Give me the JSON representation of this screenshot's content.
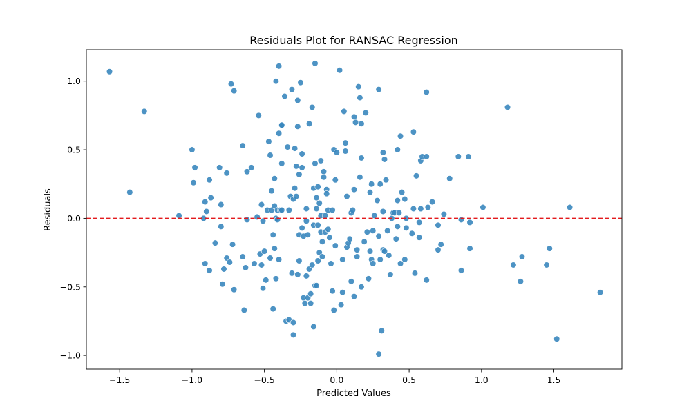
{
  "chart_data": {
    "type": "scatter",
    "title": "Residuals Plot for RANSAC Regression",
    "xlabel": "Predicted Values",
    "ylabel": "Residuals",
    "xlim": [
      -1.73,
      1.97
    ],
    "ylim": [
      -1.1,
      1.23
    ],
    "xticks": [
      -1.5,
      -1.0,
      -0.5,
      0.0,
      0.5,
      1.0,
      1.5
    ],
    "xtick_labels": [
      "−1.5",
      "−1.0",
      "−0.5",
      "0.0",
      "0.5",
      "1.0",
      "1.5"
    ],
    "yticks": [
      -1.0,
      -0.5,
      0.0,
      0.5,
      1.0
    ],
    "ytick_labels": [
      "−1.0",
      "−0.5",
      "0.0",
      "0.5",
      "1.0"
    ],
    "grid": false,
    "point_color": "#3a87be",
    "reference_line": {
      "y": 0,
      "color": "#e31a1c",
      "style": "dashed"
    },
    "points": [
      [
        -1.57,
        1.07
      ],
      [
        -1.43,
        0.19
      ],
      [
        -1.33,
        0.78
      ],
      [
        -1.09,
        0.02
      ],
      [
        -1.0,
        0.5
      ],
      [
        -0.99,
        0.26
      ],
      [
        -0.98,
        0.37
      ],
      [
        -0.92,
        0.0
      ],
      [
        -0.91,
        0.12
      ],
      [
        -0.91,
        -0.33
      ],
      [
        -0.9,
        0.05
      ],
      [
        -0.88,
        0.28
      ],
      [
        -0.88,
        -0.38
      ],
      [
        -0.87,
        0.15
      ],
      [
        -0.84,
        -0.18
      ],
      [
        -0.81,
        0.37
      ],
      [
        -0.8,
        -0.06
      ],
      [
        -0.8,
        0.1
      ],
      [
        -0.79,
        -0.48
      ],
      [
        -0.78,
        -0.37
      ],
      [
        -0.76,
        -0.29
      ],
      [
        -0.76,
        0.33
      ],
      [
        -0.74,
        -0.32
      ],
      [
        -0.73,
        0.98
      ],
      [
        -0.71,
        0.93
      ],
      [
        -0.72,
        -0.19
      ],
      [
        -0.71,
        -0.52
      ],
      [
        -0.65,
        0.53
      ],
      [
        -0.65,
        -0.28
      ],
      [
        -0.64,
        -0.67
      ],
      [
        -0.63,
        -0.36
      ],
      [
        -0.62,
        0.34
      ],
      [
        -0.62,
        -0.01
      ],
      [
        -0.59,
        0.37
      ],
      [
        -0.57,
        -0.33
      ],
      [
        -0.55,
        0.01
      ],
      [
        -0.54,
        0.75
      ],
      [
        -0.53,
        -0.26
      ],
      [
        -0.52,
        0.1
      ],
      [
        -0.52,
        -0.34
      ],
      [
        -0.51,
        -0.02
      ],
      [
        -0.51,
        -0.51
      ],
      [
        -0.5,
        -0.24
      ],
      [
        -0.49,
        -0.45
      ],
      [
        -0.48,
        0.06
      ],
      [
        -0.47,
        0.56
      ],
      [
        -0.46,
        0.46
      ],
      [
        -0.46,
        -0.29
      ],
      [
        -0.45,
        0.2
      ],
      [
        -0.45,
        0.06
      ],
      [
        -0.44,
        -0.66
      ],
      [
        -0.44,
        -0.12
      ],
      [
        -0.43,
        0.09
      ],
      [
        -0.43,
        0.29
      ],
      [
        -0.43,
        -0.22
      ],
      [
        -0.42,
        0.0
      ],
      [
        -0.42,
        -0.44
      ],
      [
        -0.42,
        1.0
      ],
      [
        -0.41,
        -0.01
      ],
      [
        -0.41,
        0.06
      ],
      [
        -0.4,
        1.11
      ],
      [
        -0.4,
        0.62
      ],
      [
        -0.4,
        -0.3
      ],
      [
        -0.39,
        0.06
      ],
      [
        -0.38,
        0.68
      ],
      [
        -0.38,
        0.68
      ],
      [
        -0.38,
        0.4
      ],
      [
        -0.38,
        0.06
      ],
      [
        -0.36,
        0.89
      ],
      [
        -0.35,
        -0.75
      ],
      [
        -0.34,
        0.52
      ],
      [
        -0.33,
        -0.74
      ],
      [
        -0.33,
        0.06
      ],
      [
        -0.32,
        0.16
      ],
      [
        -0.31,
        0.94
      ],
      [
        -0.31,
        -0.4
      ],
      [
        -0.3,
        0.14
      ],
      [
        -0.3,
        -0.85
      ],
      [
        -0.3,
        -0.76
      ],
      [
        -0.29,
        0.22
      ],
      [
        -0.29,
        0.51
      ],
      [
        -0.28,
        0.38
      ],
      [
        -0.28,
        0.16
      ],
      [
        -0.27,
        -0.41
      ],
      [
        -0.27,
        0.86
      ],
      [
        -0.27,
        0.67
      ],
      [
        -0.26,
        0.32
      ],
      [
        -0.26,
        -0.12
      ],
      [
        -0.26,
        -0.31
      ],
      [
        -0.25,
        0.99
      ],
      [
        -0.24,
        0.47
      ],
      [
        -0.24,
        0.37
      ],
      [
        -0.24,
        -0.07
      ],
      [
        -0.23,
        -0.13
      ],
      [
        -0.23,
        -0.58
      ],
      [
        -0.22,
        -0.62
      ],
      [
        -0.21,
        0.07
      ],
      [
        -0.21,
        -0.02
      ],
      [
        -0.21,
        -0.42
      ],
      [
        -0.2,
        -0.58
      ],
      [
        -0.2,
        -0.12
      ],
      [
        -0.19,
        0.69
      ],
      [
        -0.19,
        -0.37
      ],
      [
        -0.18,
        -0.62
      ],
      [
        -0.18,
        -0.55
      ],
      [
        -0.17,
        0.81
      ],
      [
        -0.17,
        -0.34
      ],
      [
        -0.16,
        0.22
      ],
      [
        -0.16,
        -0.05
      ],
      [
        -0.16,
        -0.79
      ],
      [
        -0.15,
        1.13
      ],
      [
        -0.15,
        -0.49
      ],
      [
        -0.15,
        0.4
      ],
      [
        -0.14,
        0.07
      ],
      [
        -0.14,
        -0.49
      ],
      [
        -0.14,
        0.15
      ],
      [
        -0.13,
        -0.05
      ],
      [
        -0.13,
        0.23
      ],
      [
        -0.13,
        -0.31
      ],
      [
        -0.12,
        0.11
      ],
      [
        -0.12,
        -0.25
      ],
      [
        -0.11,
        0.42
      ],
      [
        -0.11,
        -0.1
      ],
      [
        -0.11,
        0.02
      ],
      [
        -0.1,
        -0.17
      ],
      [
        -0.1,
        -0.28
      ],
      [
        -0.09,
        0.34
      ],
      [
        -0.09,
        0.3
      ],
      [
        -0.08,
        0.02
      ],
      [
        -0.08,
        -0.1
      ],
      [
        -0.07,
        0.21
      ],
      [
        -0.07,
        0.18
      ],
      [
        -0.06,
        -0.08
      ],
      [
        -0.06,
        0.06
      ],
      [
        -0.05,
        -0.14
      ],
      [
        -0.04,
        -0.33
      ],
      [
        -0.03,
        0.06
      ],
      [
        -0.03,
        -0.53
      ],
      [
        -0.02,
        0.5
      ],
      [
        -0.02,
        -0.67
      ],
      [
        -0.01,
        0.28
      ],
      [
        -0.01,
        -0.2
      ],
      [
        0.0,
        0.48
      ],
      [
        0.02,
        1.08
      ],
      [
        0.03,
        -0.63
      ],
      [
        0.04,
        -0.54
      ],
      [
        0.04,
        -0.3
      ],
      [
        0.05,
        0.78
      ],
      [
        0.06,
        0.55
      ],
      [
        0.06,
        0.49
      ],
      [
        0.07,
        -0.21
      ],
      [
        0.07,
        0.16
      ],
      [
        0.08,
        -0.18
      ],
      [
        0.09,
        -0.15
      ],
      [
        0.1,
        0.04
      ],
      [
        0.1,
        -0.46
      ],
      [
        0.11,
        0.06
      ],
      [
        0.12,
        0.74
      ],
      [
        0.12,
        -0.57
      ],
      [
        0.12,
        0.21
      ],
      [
        0.13,
        0.7
      ],
      [
        0.14,
        -0.23
      ],
      [
        0.14,
        -0.28
      ],
      [
        0.15,
        0.96
      ],
      [
        0.16,
        0.88
      ],
      [
        0.16,
        0.3
      ],
      [
        0.17,
        -0.5
      ],
      [
        0.17,
        0.44
      ],
      [
        0.17,
        0.69
      ],
      [
        0.19,
        -0.17
      ],
      [
        0.2,
        0.77
      ],
      [
        0.21,
        -0.1
      ],
      [
        0.22,
        -0.44
      ],
      [
        0.23,
        0.19
      ],
      [
        0.23,
        -0.24
      ],
      [
        0.24,
        -0.3
      ],
      [
        0.24,
        0.25
      ],
      [
        0.25,
        -0.33
      ],
      [
        0.25,
        -0.09
      ],
      [
        0.26,
        0.02
      ],
      [
        0.28,
        0.13
      ],
      [
        0.29,
        -0.99
      ],
      [
        0.29,
        0.94
      ],
      [
        0.29,
        -0.13
      ],
      [
        0.3,
        0.25
      ],
      [
        0.3,
        -0.3
      ],
      [
        0.31,
        -0.82
      ],
      [
        0.32,
        0.48
      ],
      [
        0.32,
        0.05
      ],
      [
        0.32,
        -0.23
      ],
      [
        0.33,
        -0.24
      ],
      [
        0.33,
        0.43
      ],
      [
        0.34,
        0.28
      ],
      [
        0.35,
        -0.09
      ],
      [
        0.36,
        -0.27
      ],
      [
        0.37,
        -0.41
      ],
      [
        0.38,
        0.0
      ],
      [
        0.39,
        0.04
      ],
      [
        0.4,
        0.04
      ],
      [
        0.41,
        -0.15
      ],
      [
        0.42,
        0.5
      ],
      [
        0.42,
        0.13
      ],
      [
        0.42,
        -0.06
      ],
      [
        0.43,
        0.04
      ],
      [
        0.44,
        0.6
      ],
      [
        0.44,
        -0.33
      ],
      [
        0.45,
        0.19
      ],
      [
        0.47,
        0.14
      ],
      [
        0.47,
        -0.3
      ],
      [
        0.48,
        -0.07
      ],
      [
        0.48,
        0.0
      ],
      [
        0.52,
        -0.11
      ],
      [
        0.53,
        0.63
      ],
      [
        0.53,
        0.07
      ],
      [
        0.54,
        -0.4
      ],
      [
        0.55,
        0.31
      ],
      [
        0.57,
        -0.14
      ],
      [
        0.57,
        -0.03
      ],
      [
        0.58,
        0.07
      ],
      [
        0.58,
        0.42
      ],
      [
        0.59,
        0.45
      ],
      [
        0.62,
        0.92
      ],
      [
        0.62,
        0.45
      ],
      [
        0.62,
        -0.45
      ],
      [
        0.63,
        0.08
      ],
      [
        0.66,
        0.12
      ],
      [
        0.7,
        -0.05
      ],
      [
        0.7,
        -0.23
      ],
      [
        0.72,
        -0.19
      ],
      [
        0.74,
        0.03
      ],
      [
        0.78,
        0.29
      ],
      [
        0.84,
        0.45
      ],
      [
        0.86,
        -0.01
      ],
      [
        0.86,
        -0.38
      ],
      [
        0.91,
        0.45
      ],
      [
        0.92,
        -0.22
      ],
      [
        0.92,
        -0.03
      ],
      [
        1.01,
        0.08
      ],
      [
        1.18,
        0.81
      ],
      [
        1.22,
        -0.34
      ],
      [
        1.27,
        -0.46
      ],
      [
        1.28,
        -0.28
      ],
      [
        1.45,
        -0.34
      ],
      [
        1.47,
        -0.22
      ],
      [
        1.52,
        -0.88
      ],
      [
        1.61,
        0.08
      ],
      [
        1.82,
        -0.54
      ]
    ]
  }
}
